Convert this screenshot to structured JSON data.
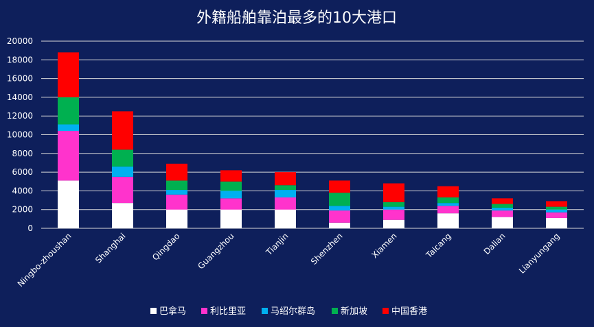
{
  "chart_data": {
    "type": "bar",
    "stacked": true,
    "title": "外籍船舶靠泊最多的10大港口",
    "xlabel": "",
    "ylabel": "",
    "ylim": [
      0,
      20000
    ],
    "yticks": [
      0,
      2000,
      4000,
      6000,
      8000,
      10000,
      12000,
      14000,
      16000,
      18000,
      20000
    ],
    "grid": true,
    "legend_position": "bottom",
    "categories": [
      "Ningbo-zhoushan",
      "Shanghai",
      "Qingdao",
      "Guangzhou",
      "Tianjin",
      "Shenzhen",
      "Xiamen",
      "Taicang",
      "Dalian",
      "Lianyungang"
    ],
    "series": [
      {
        "name": "巴拿马",
        "color": "#ffffff",
        "values": [
          5100,
          2700,
          2000,
          2000,
          2000,
          600,
          900,
          1600,
          1200,
          1100
        ]
      },
      {
        "name": "利比里亚",
        "color": "#ff33cc",
        "values": [
          5300,
          2800,
          1600,
          1200,
          1300,
          1300,
          1100,
          800,
          700,
          600
        ]
      },
      {
        "name": "马绍尔群岛",
        "color": "#00b0f0",
        "values": [
          700,
          1100,
          500,
          800,
          800,
          500,
          300,
          300,
          300,
          300
        ]
      },
      {
        "name": "新加坡",
        "color": "#00b050",
        "values": [
          2900,
          1800,
          1000,
          1000,
          500,
          1400,
          500,
          600,
          400,
          300
        ]
      },
      {
        "name": "中国香港",
        "color": "#ff0000",
        "values": [
          4800,
          4100,
          1800,
          1200,
          1400,
          1300,
          2000,
          1200,
          600,
          600
        ]
      }
    ]
  }
}
